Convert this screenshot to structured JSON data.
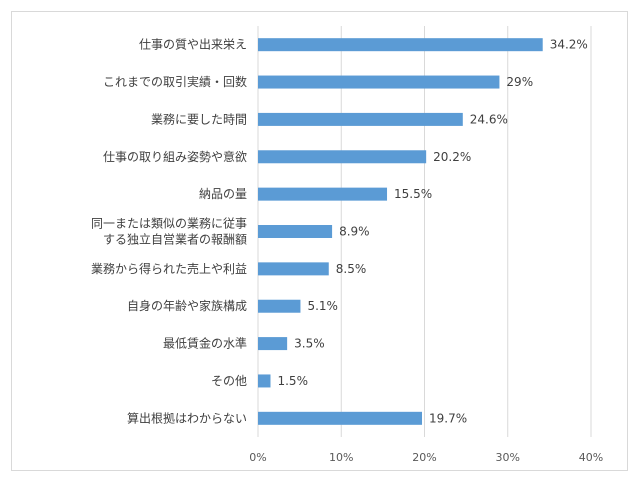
{
  "chart_data": {
    "type": "bar",
    "orientation": "horizontal",
    "categories": [
      [
        "仕事の質や出来栄え"
      ],
      [
        "これまでの取引実績・回数"
      ],
      [
        "業務に要した時間"
      ],
      [
        "仕事の取り組み姿勢や意欲"
      ],
      [
        "納品の量"
      ],
      [
        "同一または類似の業務に従事",
        "する独立自営業者の報酬額"
      ],
      [
        "業務から得られた売上や利益"
      ],
      [
        "自身の年齢や家族構成"
      ],
      [
        "最低賃金の水準"
      ],
      [
        "その他"
      ],
      [
        "算出根拠はわからない"
      ]
    ],
    "values": [
      34.2,
      29,
      24.6,
      20.2,
      15.5,
      8.9,
      8.5,
      5.1,
      3.5,
      1.5,
      19.7
    ],
    "value_labels": [
      "34.2%",
      "29%",
      "24.6%",
      "20.2%",
      "15.5%",
      "8.9%",
      "8.5%",
      "5.1%",
      "3.5%",
      "1.5%",
      "19.7%"
    ],
    "xlim": [
      0,
      40
    ],
    "x_ticks": [
      0,
      10,
      20,
      30,
      40
    ],
    "x_tick_labels": [
      "0%",
      "10%",
      "20%",
      "30%",
      "40%"
    ],
    "grid": true,
    "bar_color": "#5B9BD5",
    "grid_color": "#d9d9d9"
  }
}
